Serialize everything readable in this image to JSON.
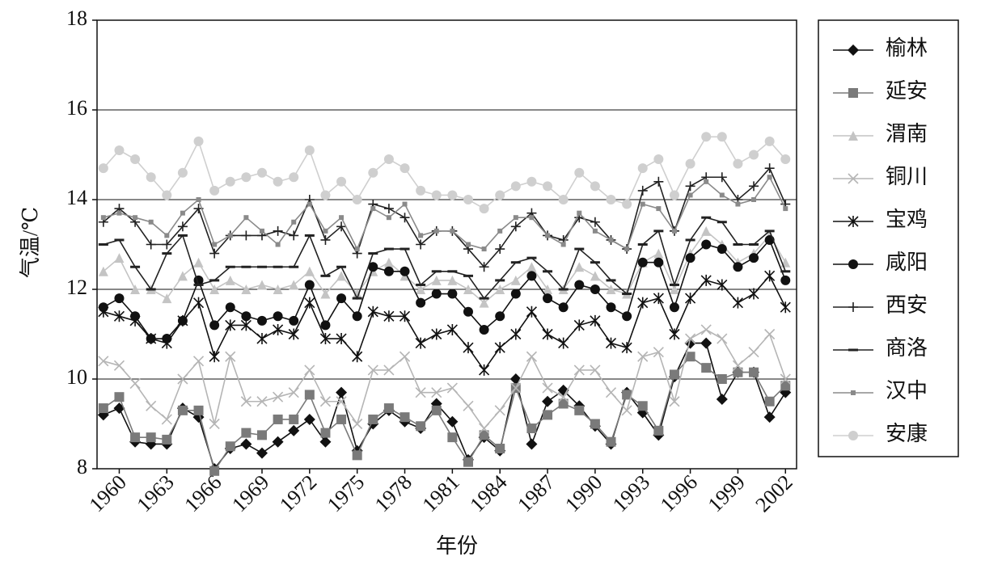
{
  "chart_data": {
    "type": "line",
    "y_label": "气温/℃",
    "x_label": "年份",
    "x": [
      1959,
      1960,
      1961,
      1962,
      1963,
      1964,
      1965,
      1966,
      1967,
      1968,
      1969,
      1970,
      1971,
      1972,
      1973,
      1974,
      1975,
      1976,
      1977,
      1978,
      1979,
      1980,
      1981,
      1982,
      1983,
      1984,
      1985,
      1986,
      1987,
      1988,
      1989,
      1990,
      1991,
      1992,
      1993,
      1994,
      1995,
      1996,
      1997,
      1998,
      1999,
      2000,
      2001,
      2002
    ],
    "xlim": [
      1958.6,
      2002.7
    ],
    "xticks": [
      1960,
      1963,
      1966,
      1969,
      1972,
      1975,
      1978,
      1981,
      1984,
      1987,
      1990,
      1993,
      1996,
      1999,
      2002
    ],
    "ylim": [
      8,
      18
    ],
    "yticks": [
      8,
      10,
      12,
      14,
      16,
      18
    ],
    "grid": true,
    "legend": "right",
    "series": [
      {
        "name": "榆林",
        "color": "#111111",
        "marker": "diamond",
        "values": [
          9.2,
          9.35,
          8.6,
          8.55,
          8.55,
          9.35,
          9.15,
          8.0,
          8.45,
          8.55,
          8.35,
          8.6,
          8.85,
          9.1,
          8.6,
          9.7,
          8.4,
          9.0,
          9.3,
          9.05,
          8.9,
          9.45,
          9.05,
          8.2,
          8.7,
          8.4,
          10.0,
          8.55,
          9.5,
          9.75,
          9.4,
          8.95,
          8.55,
          9.7,
          9.25,
          8.75,
          10.05,
          10.8,
          10.8,
          9.55,
          10.15,
          10.15,
          9.15,
          9.7
        ]
      },
      {
        "name": "延安",
        "color": "#7a7a7a",
        "marker": "square",
        "values": [
          9.35,
          9.6,
          8.7,
          8.7,
          8.65,
          9.3,
          9.3,
          7.95,
          8.5,
          8.8,
          8.75,
          9.1,
          9.1,
          9.65,
          8.8,
          9.1,
          8.3,
          9.1,
          9.35,
          9.15,
          8.95,
          9.3,
          8.7,
          8.15,
          8.75,
          8.45,
          9.8,
          8.9,
          9.2,
          9.45,
          9.3,
          9.0,
          8.6,
          9.65,
          9.4,
          8.85,
          10.1,
          10.5,
          10.25,
          10.0,
          10.15,
          10.15,
          9.5,
          9.85
        ]
      },
      {
        "name": "渭南",
        "color": "#c4c4c4",
        "marker": "triangle",
        "values": [
          12.4,
          12.7,
          12.0,
          12.0,
          11.8,
          12.3,
          12.6,
          12.0,
          12.2,
          12.0,
          12.1,
          12.0,
          12.1,
          12.4,
          11.9,
          12.3,
          11.9,
          12.4,
          12.6,
          12.3,
          12.0,
          12.2,
          12.2,
          12.0,
          11.7,
          12.0,
          12.2,
          12.5,
          12.0,
          12.0,
          12.5,
          12.3,
          12.0,
          11.9,
          12.6,
          12.8,
          12.0,
          12.8,
          13.3,
          13.0,
          12.6,
          12.8,
          13.2,
          12.6
        ]
      },
      {
        "name": "铜川",
        "color": "#b5b5b5",
        "marker": "x",
        "values": [
          10.4,
          10.3,
          9.9,
          9.4,
          9.1,
          10.0,
          10.4,
          9.0,
          10.5,
          9.5,
          9.5,
          9.6,
          9.7,
          10.2,
          9.5,
          9.5,
          9.0,
          10.2,
          10.2,
          10.5,
          9.7,
          9.7,
          9.8,
          9.4,
          8.9,
          9.3,
          9.8,
          10.5,
          9.8,
          9.6,
          10.2,
          10.2,
          9.7,
          9.3,
          10.5,
          10.6,
          9.5,
          10.9,
          11.1,
          10.9,
          10.3,
          10.6,
          11.0,
          10.0
        ]
      },
      {
        "name": "宝鸡",
        "color": "#111111",
        "marker": "asterisk",
        "values": [
          11.5,
          11.4,
          11.3,
          10.9,
          10.8,
          11.3,
          11.7,
          10.5,
          11.2,
          11.2,
          10.9,
          11.1,
          11.0,
          11.7,
          10.9,
          10.9,
          10.5,
          11.5,
          11.4,
          11.4,
          10.8,
          11.0,
          11.1,
          10.7,
          10.2,
          10.7,
          11.0,
          11.5,
          11.0,
          10.8,
          11.2,
          11.3,
          10.8,
          10.7,
          11.7,
          11.8,
          11.0,
          11.8,
          12.2,
          12.1,
          11.7,
          11.9,
          12.3,
          11.6
        ]
      },
      {
        "name": "咸阳",
        "color": "#111111",
        "marker": "circle",
        "values": [
          11.6,
          11.8,
          11.4,
          10.9,
          10.9,
          11.3,
          12.2,
          11.2,
          11.6,
          11.4,
          11.3,
          11.4,
          11.3,
          12.1,
          11.2,
          11.8,
          11.4,
          12.5,
          12.4,
          12.4,
          11.7,
          11.9,
          11.9,
          11.5,
          11.1,
          11.4,
          11.9,
          12.3,
          11.8,
          11.6,
          12.1,
          12.0,
          11.6,
          11.4,
          12.6,
          12.6,
          11.6,
          12.7,
          13.0,
          12.9,
          12.5,
          12.7,
          13.1,
          12.2
        ]
      },
      {
        "name": "西安",
        "color": "#222222",
        "marker": "plus",
        "values": [
          13.5,
          13.8,
          13.5,
          13.0,
          13.0,
          13.4,
          13.8,
          12.8,
          13.2,
          13.2,
          13.2,
          13.3,
          13.2,
          14.0,
          13.1,
          13.4,
          12.8,
          13.9,
          13.8,
          13.6,
          13.0,
          13.3,
          13.3,
          12.9,
          12.5,
          12.9,
          13.4,
          13.7,
          13.2,
          13.1,
          13.6,
          13.5,
          13.1,
          12.9,
          14.2,
          14.4,
          13.3,
          14.3,
          14.5,
          14.5,
          14.0,
          14.3,
          14.7,
          13.9
        ]
      },
      {
        "name": "商洛",
        "color": "#222222",
        "marker": "dash",
        "values": [
          13.0,
          13.1,
          12.5,
          12.0,
          12.8,
          13.2,
          12.1,
          12.2,
          12.5,
          12.5,
          12.5,
          12.5,
          12.5,
          13.2,
          12.3,
          12.5,
          11.8,
          12.8,
          12.9,
          12.9,
          12.1,
          12.4,
          12.4,
          12.3,
          11.8,
          12.2,
          12.6,
          12.7,
          12.4,
          12.0,
          12.9,
          12.6,
          12.2,
          11.9,
          13.0,
          13.3,
          12.1,
          13.1,
          13.6,
          13.5,
          13.0,
          13.0,
          13.3,
          12.4
        ]
      },
      {
        "name": "汉中",
        "color": "#8a8a8a",
        "marker": "dot",
        "values": [
          13.6,
          13.7,
          13.6,
          13.5,
          13.2,
          13.7,
          14.0,
          13.0,
          13.2,
          13.6,
          13.3,
          13.0,
          13.5,
          13.9,
          13.3,
          13.6,
          12.9,
          13.8,
          13.6,
          13.9,
          13.2,
          13.3,
          13.3,
          13.0,
          12.9,
          13.3,
          13.6,
          13.6,
          13.2,
          13.0,
          13.7,
          13.3,
          13.1,
          12.9,
          13.9,
          13.8,
          13.3,
          14.1,
          14.4,
          14.1,
          13.9,
          14.0,
          14.5,
          13.8
        ]
      },
      {
        "name": "安康",
        "color": "#cfcfcf",
        "marker": "circle",
        "values": [
          14.7,
          15.1,
          14.9,
          14.5,
          14.1,
          14.6,
          15.3,
          14.2,
          14.4,
          14.5,
          14.6,
          14.4,
          14.5,
          15.1,
          14.1,
          14.4,
          14.0,
          14.6,
          14.9,
          14.7,
          14.2,
          14.1,
          14.1,
          14.0,
          13.8,
          14.1,
          14.3,
          14.4,
          14.3,
          14.0,
          14.6,
          14.3,
          14.0,
          13.9,
          14.7,
          14.9,
          14.1,
          14.8,
          15.4,
          15.4,
          14.8,
          15.0,
          15.3,
          14.9
        ]
      }
    ]
  }
}
